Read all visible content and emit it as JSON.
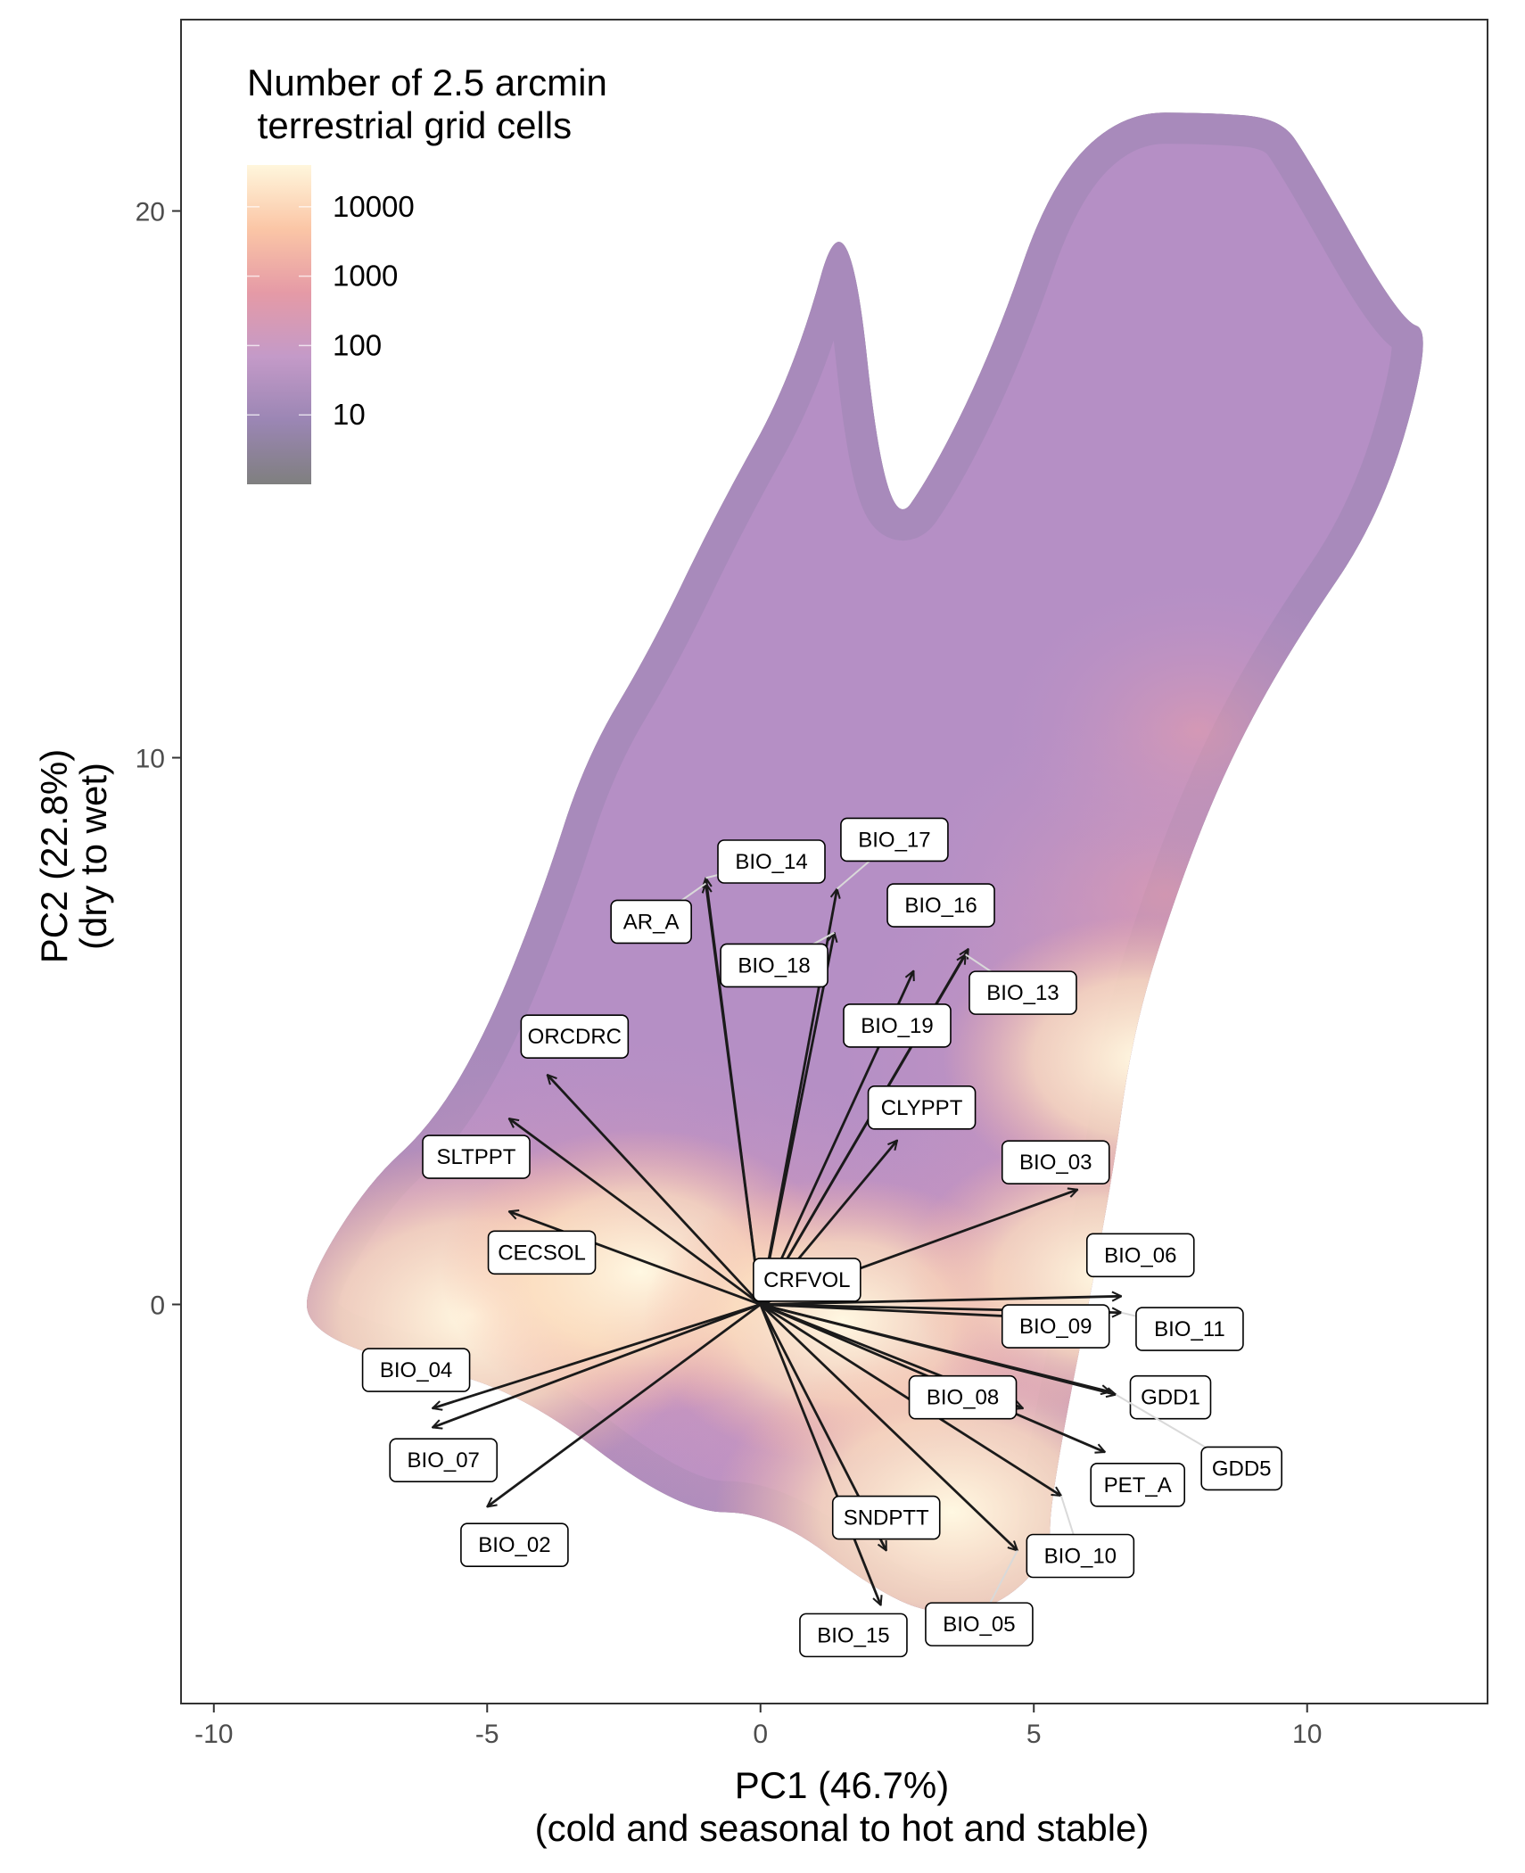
{
  "chart_data": {
    "type": "scatter",
    "subtype": "PCA biplot over 2-D density heatmap (log color scale)",
    "xlabel_line1": "PC1 (46.7%)",
    "xlabel_line2": "(cold and seasonal to hot and stable)",
    "ylabel_line1": "PC2 (22.8%)",
    "ylabel_line2": "(dry to wet)",
    "xlim": [
      -10.6,
      13.3
    ],
    "ylim": [
      -7.3,
      23.5
    ],
    "x_ticks": [
      -10,
      -5,
      0,
      5,
      10
    ],
    "x_tick_labels": [
      "-10",
      "-5",
      "0",
      "5",
      "10"
    ],
    "y_ticks": [
      0,
      10,
      20
    ],
    "y_tick_labels": [
      "0",
      "10",
      "20"
    ],
    "grid": false,
    "legend": {
      "title_line1": "Number of 2.5 arcmin",
      "title_line2": " terrestrial grid cells",
      "position": "top-left",
      "scale": "log",
      "range": [
        1,
        40000
      ],
      "labels": [
        "10000",
        "1000",
        "100",
        "10"
      ],
      "values": [
        10000,
        1000,
        100,
        10
      ],
      "colors": [
        "#7f7f7f",
        "#9b86b4",
        "#c49ac8",
        "#e59aa6",
        "#fbc6a6",
        "#fff6dc"
      ]
    },
    "density_shape": [
      [
        -8.3,
        0.4
      ],
      [
        -7.2,
        2.2
      ],
      [
        -6.0,
        3.3
      ],
      [
        -5.0,
        5.0
      ],
      [
        -4.0,
        7.5
      ],
      [
        -3.2,
        10.0
      ],
      [
        -2.0,
        12.0
      ],
      [
        -0.8,
        14.5
      ],
      [
        0.6,
        17.0
      ],
      [
        1.6,
        20.6
      ],
      [
        2.3,
        14.0
      ],
      [
        3.2,
        15.3
      ],
      [
        4.3,
        17.6
      ],
      [
        5.3,
        20.5
      ],
      [
        6.6,
        21.8
      ],
      [
        8.2,
        21.8
      ],
      [
        9.5,
        21.7
      ],
      [
        10.0,
        21.0
      ],
      [
        11.7,
        18.0
      ],
      [
        12.3,
        17.8
      ],
      [
        11.4,
        14.5
      ],
      [
        9.7,
        12.0
      ],
      [
        8.6,
        10.0
      ],
      [
        7.7,
        7.8
      ],
      [
        6.8,
        5.0
      ],
      [
        6.4,
        2.0
      ],
      [
        5.3,
        -3.5
      ],
      [
        5.3,
        -4.6
      ],
      [
        4.4,
        -5.5
      ],
      [
        3.3,
        -5.7
      ],
      [
        2.2,
        -5.3
      ],
      [
        0.2,
        -3.8
      ],
      [
        -1.5,
        -3.8
      ],
      [
        -4.5,
        -1.5
      ],
      [
        -7.0,
        -1.0
      ],
      [
        -8.3,
        -0.4
      ]
    ],
    "density_cores": [
      {
        "x": -5.3,
        "y": -0.2,
        "level": 5
      },
      {
        "x": -2.2,
        "y": 0.6,
        "level": 4
      },
      {
        "x": 1.5,
        "y": -0.3,
        "level": 4
      },
      {
        "x": 3.5,
        "y": -3.8,
        "level": 5
      },
      {
        "x": 6.3,
        "y": 0.5,
        "level": 4
      },
      {
        "x": 7.0,
        "y": 4.5,
        "level": 4
      },
      {
        "x": 7.4,
        "y": 7.5,
        "level": 3
      },
      {
        "x": 8.0,
        "y": 10.5,
        "level": 2
      }
    ],
    "arrows": [
      {
        "name": "BIO_14",
        "x": -1.0,
        "y": 7.8,
        "label_x": 0.2,
        "label_y": 8.1
      },
      {
        "name": "BIO_17",
        "x": 1.4,
        "y": 7.6,
        "label_x": 2.45,
        "label_y": 8.5
      },
      {
        "name": "AR_A",
        "x": -1.0,
        "y": 7.7,
        "label_x": -2.0,
        "label_y": 7.0
      },
      {
        "name": "BIO_16",
        "x": 3.8,
        "y": 6.5,
        "label_x": 3.3,
        "label_y": 7.3
      },
      {
        "name": "BIO_18",
        "x": 1.35,
        "y": 6.8,
        "label_x": 0.25,
        "label_y": 6.2
      },
      {
        "name": "BIO_13",
        "x": 3.75,
        "y": 6.4,
        "label_x": 4.8,
        "label_y": 5.7
      },
      {
        "name": "BIO_19",
        "x": 2.8,
        "y": 6.1,
        "label_x": 2.5,
        "label_y": 5.1
      },
      {
        "name": "ORCDRC",
        "x": -3.9,
        "y": 4.2,
        "label_x": -3.4,
        "label_y": 4.9
      },
      {
        "name": "CLYPPT",
        "x": 2.5,
        "y": 3.0,
        "label_x": 2.95,
        "label_y": 3.6
      },
      {
        "name": "SLTPPT",
        "x": -4.6,
        "y": 3.4,
        "label_x": -5.2,
        "label_y": 2.7
      },
      {
        "name": "BIO_03",
        "x": 5.8,
        "y": 2.1,
        "label_x": 5.4,
        "label_y": 2.6
      },
      {
        "name": "CECSOL",
        "x": -4.6,
        "y": 1.7,
        "label_x": -4.0,
        "label_y": 0.95
      },
      {
        "name": "BIO_06",
        "x": 6.6,
        "y": 0.15,
        "label_x": 6.95,
        "label_y": 0.9
      },
      {
        "name": "CRFVOL",
        "x": 0.2,
        "y": 0.1,
        "label_x": 0.85,
        "label_y": 0.45
      },
      {
        "name": "BIO_09",
        "x": 6.3,
        "y": -0.3,
        "label_x": 5.4,
        "label_y": -0.4
      },
      {
        "name": "BIO_11",
        "x": 6.6,
        "y": -0.15,
        "label_x": 7.85,
        "label_y": -0.45
      },
      {
        "name": "BIO_04",
        "x": -6.0,
        "y": -1.9,
        "label_x": -6.3,
        "label_y": -1.2
      },
      {
        "name": "GDD1",
        "x": 6.4,
        "y": -1.6,
        "label_x": 7.5,
        "label_y": -1.7
      },
      {
        "name": "BIO_08",
        "x": 4.8,
        "y": -1.9,
        "label_x": 3.7,
        "label_y": -1.7
      },
      {
        "name": "BIO_07",
        "x": -6.0,
        "y": -2.25,
        "label_x": -5.8,
        "label_y": -2.85
      },
      {
        "name": "GDD5",
        "x": 6.5,
        "y": -1.65,
        "label_x": 8.8,
        "label_y": -3.0
      },
      {
        "name": "PET_A",
        "x": 6.3,
        "y": -2.7,
        "label_x": 6.9,
        "label_y": -3.3
      },
      {
        "name": "SNDPTT",
        "x": 2.3,
        "y": -4.5,
        "label_x": 2.3,
        "label_y": -3.9
      },
      {
        "name": "BIO_10",
        "x": 5.5,
        "y": -3.5,
        "label_x": 5.85,
        "label_y": -4.6
      },
      {
        "name": "BIO_02",
        "x": -5.0,
        "y": -3.7,
        "label_x": -4.5,
        "label_y": -4.4
      },
      {
        "name": "BIO_05",
        "x": 4.7,
        "y": -4.5,
        "label_x": 4.0,
        "label_y": -5.85
      },
      {
        "name": "BIO_15",
        "x": 2.2,
        "y": -5.5,
        "label_x": 1.7,
        "label_y": -6.05
      }
    ]
  }
}
